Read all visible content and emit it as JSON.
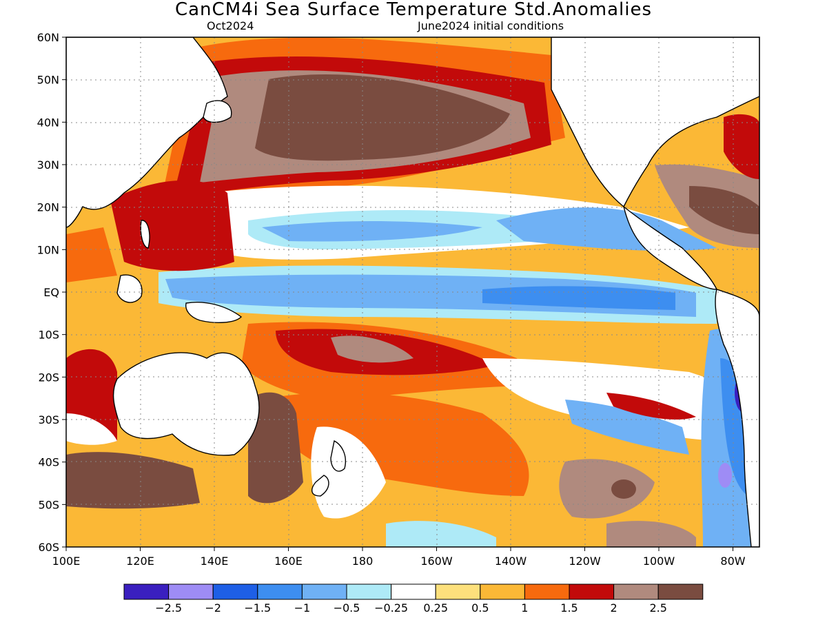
{
  "title": "CanCM4i Sea Surface Temperature Std.Anomalies",
  "target_month": "Oct2024",
  "initial_conditions": "June2024 initial conditions",
  "lat_labels": [
    "60N",
    "50N",
    "40N",
    "30N",
    "20N",
    "10N",
    "EQ",
    "10S",
    "20S",
    "30S",
    "40S",
    "50S",
    "60S"
  ],
  "lon_labels": [
    "100E",
    "120E",
    "140E",
    "160E",
    "180",
    "160W",
    "140W",
    "120W",
    "100W",
    "80W"
  ],
  "legend": {
    "colors": [
      "#3a1fbf",
      "#9e8cf5",
      "#1e5fe6",
      "#3d8ef0",
      "#6fb1f5",
      "#aeeaf7",
      "#ffffff",
      "#fde07c",
      "#fbb836",
      "#f76a0e",
      "#c20a0a",
      "#b08a7e",
      "#7a4c40"
    ],
    "labels": [
      "−2.5",
      "−2",
      "−1.5",
      "−1",
      "−0.5",
      "−0.25",
      "0.25",
      "0.5",
      "1",
      "1.5",
      "2",
      "2.5"
    ]
  },
  "colors": {
    "land": "#ffffff",
    "coast": "#000000",
    "grid": "#888888"
  }
}
